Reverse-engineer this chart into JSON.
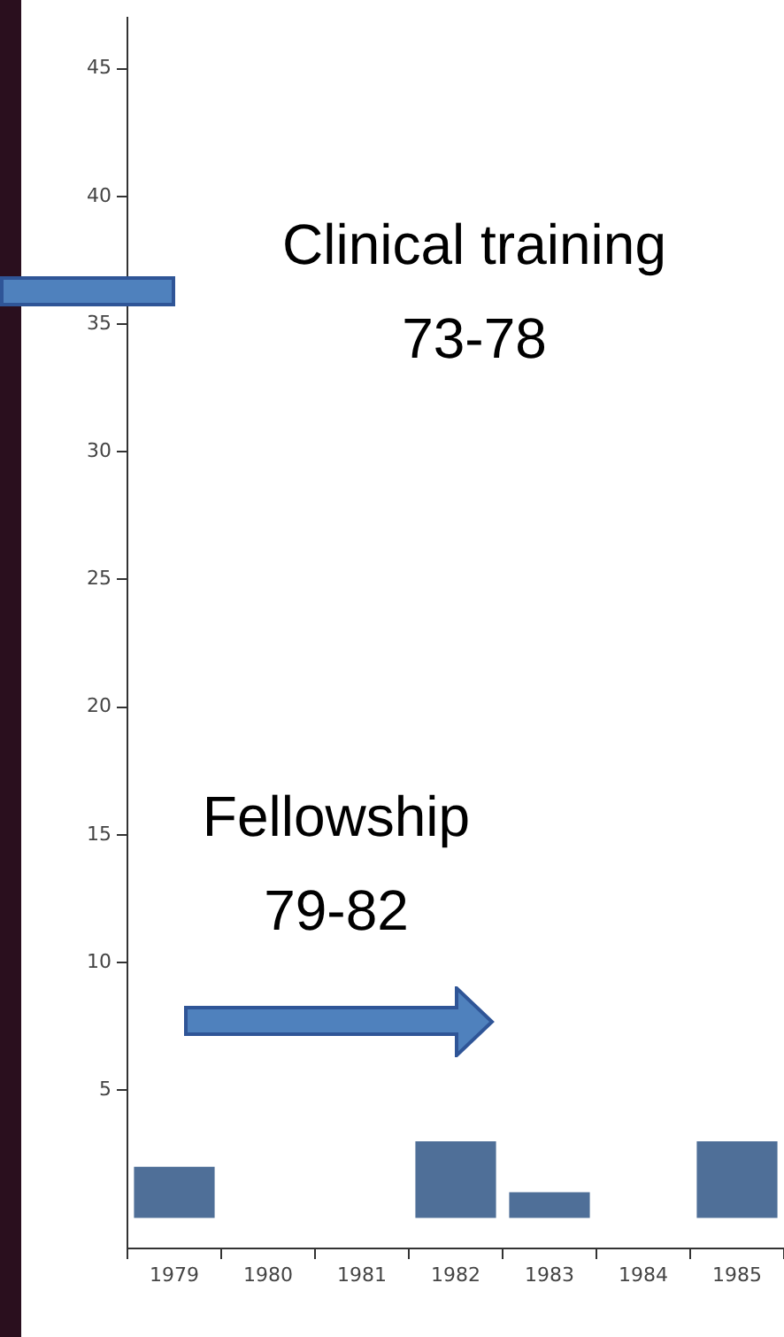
{
  "chart_data": {
    "type": "bar",
    "categories": [
      "1979",
      "1980",
      "1981",
      "1982",
      "1983",
      "1984",
      "1985"
    ],
    "values": [
      2,
      0,
      0,
      3,
      1,
      0,
      3
    ],
    "color": "#4f6f98",
    "ylim": [
      -1.2,
      47
    ],
    "yticks": [
      5,
      10,
      15,
      20,
      25,
      30,
      35,
      40,
      45
    ],
    "grid": false,
    "annotations": [
      "Clinical training\n73-78",
      "Fellowship\n79-82"
    ]
  }
}
